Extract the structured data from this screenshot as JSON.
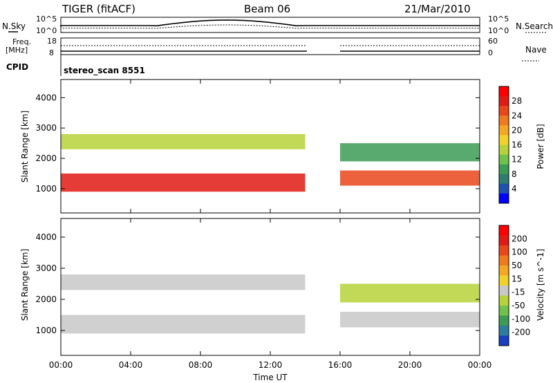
{
  "header": {
    "station": "TIGER (fitACF)",
    "beam": "Beam 06",
    "date": "21/Mar/2010"
  },
  "top_panels": {
    "nsky_label": "N.Sky",
    "nsky_ticks": [
      "10^5",
      "10^0"
    ],
    "nsearch_label": "N.Search",
    "nsearch_ticks": [
      "10^5",
      "10^0"
    ],
    "freq_label_line1": "Freq.",
    "freq_label_line2": "[MHz]",
    "freq_ticks": [
      "18",
      "8"
    ],
    "nave_label": "Nave",
    "nave_ticks": [
      "60",
      "0"
    ],
    "cpid_label": "CPID",
    "cpid_value": "stereo_scan 8551"
  },
  "chart_data": [
    {
      "type": "heatmap",
      "name": "power-panel",
      "xlabel": "Time UT",
      "ylabel": "Slant Range [km]",
      "x_ticks": [
        "00:00",
        "04:00",
        "08:00",
        "12:00",
        "16:00",
        "20:00",
        "00:00"
      ],
      "y_ticks": [
        1000,
        2000,
        3000,
        4000
      ],
      "ylim": [
        200,
        4600
      ],
      "x_range_hours": [
        0,
        24
      ],
      "data_gap_hours": [
        14.1,
        16.0
      ],
      "colorbar": {
        "label": "Power [dB]",
        "ticks": [
          "4",
          "8",
          "12",
          "16",
          "20",
          "24",
          "28"
        ],
        "range": [
          0,
          32
        ],
        "colors": [
          "#0000ff",
          "#2050b0",
          "#2e7d6e",
          "#3c9b55",
          "#6fc24a",
          "#b7d23a",
          "#f0d22a",
          "#f5a623",
          "#f07a1e",
          "#e8471a",
          "#e01a14",
          "#ff0000"
        ]
      },
      "bands": [
        {
          "t0": 0,
          "t1": 14.0,
          "r0": 900,
          "r1": 1500,
          "value": 28
        },
        {
          "t0": 0,
          "t1": 14.0,
          "r0": 2300,
          "r1": 2800,
          "value": 14
        },
        {
          "t0": 16.0,
          "t1": 24,
          "r0": 1100,
          "r1": 1600,
          "value": 24
        },
        {
          "t0": 16.0,
          "t1": 24,
          "r0": 1900,
          "r1": 2500,
          "value": 10
        }
      ]
    },
    {
      "type": "heatmap",
      "name": "velocity-panel",
      "xlabel": "Time UT",
      "ylabel": "Slant Range [km]",
      "x_ticks": [
        "00:00",
        "04:00",
        "08:00",
        "12:00",
        "16:00",
        "20:00",
        "00:00"
      ],
      "y_ticks": [
        1000,
        2000,
        3000,
        4000
      ],
      "ylim": [
        200,
        4600
      ],
      "x_range_hours": [
        0,
        24
      ],
      "data_gap_hours": [
        14.1,
        16.0
      ],
      "colorbar": {
        "label": "Velocity [m s^-1]",
        "ticks": [
          "200",
          "100",
          "50",
          "15",
          "-15",
          "-50",
          "-100",
          "-200"
        ],
        "colors": [
          "#1a3fc0",
          "#2e7d9e",
          "#3c9b55",
          "#6fc24a",
          "#b7d23a",
          "#c8c8c8",
          "#f0d22a",
          "#f5a623",
          "#f07a1e",
          "#e8471a",
          "#e01a14",
          "#ff0000"
        ]
      },
      "bands": [
        {
          "t0": 0,
          "t1": 14.0,
          "r0": 900,
          "r1": 1500,
          "value": 0
        },
        {
          "t0": 0,
          "t1": 14.0,
          "r0": 2300,
          "r1": 2800,
          "value": 0
        },
        {
          "t0": 16.0,
          "t1": 24,
          "r0": 1100,
          "r1": 1600,
          "value": 0
        },
        {
          "t0": 16.0,
          "t1": 24,
          "r0": 1900,
          "r1": 2500,
          "value": 30
        }
      ]
    }
  ]
}
